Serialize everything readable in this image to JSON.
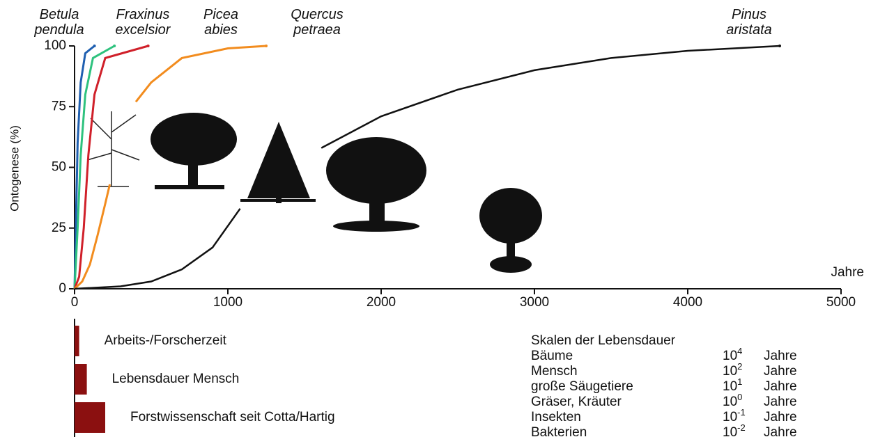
{
  "chart_data": [
    {
      "type": "line",
      "xlabel": "Jahre",
      "ylabel": "Ontogenese (%)",
      "xlim": [
        0,
        5000
      ],
      "xticks": [
        0,
        1000,
        2000,
        3000,
        4000,
        5000
      ],
      "ylim": [
        0,
        100
      ],
      "yticks": [
        0,
        25,
        50,
        75,
        100
      ],
      "series": [
        {
          "name": "Betula pendula",
          "color": "#1f5fb0",
          "x": [
            0,
            10,
            20,
            40,
            70,
            130
          ],
          "values": [
            0,
            30,
            60,
            85,
            97,
            100
          ]
        },
        {
          "name": "Fraxinus excelsior",
          "color": "#2ec27e",
          "x": [
            0,
            20,
            40,
            70,
            120,
            260
          ],
          "values": [
            0,
            25,
            55,
            80,
            95,
            100
          ]
        },
        {
          "name": "Picea abies",
          "color": "#d0202a",
          "x": [
            0,
            30,
            60,
            90,
            130,
            200,
            480
          ],
          "values": [
            0,
            5,
            25,
            55,
            80,
            95,
            100
          ]
        },
        {
          "name": "Quercus petraea",
          "color": "#f28c1e",
          "x": [
            0,
            50,
            100,
            150,
            200,
            230,
            300,
            400,
            500,
            700,
            1000,
            1250
          ],
          "values": [
            0,
            3,
            10,
            22,
            35,
            43,
            null,
            77,
            85,
            95,
            99,
            100
          ]
        },
        {
          "name": "Pinus aristata",
          "color": "#111111",
          "x": [
            0,
            300,
            500,
            700,
            900,
            1080,
            1300,
            1610,
            2000,
            2500,
            3000,
            3500,
            4000,
            4600
          ],
          "values": [
            0,
            1,
            3,
            8,
            17,
            33,
            null,
            58,
            71,
            82,
            90,
            95,
            98,
            100
          ]
        }
      ]
    },
    {
      "type": "bar",
      "orientation": "horizontal",
      "color": "#8b1010",
      "categories": [
        "Arbeits-/Forscherzeit",
        "Lebensdauer Mensch",
        "Forstwissenschaft seit Cotta/Hartig"
      ],
      "values": [
        30,
        80,
        200
      ]
    }
  ],
  "table": {
    "title": "Skalen der Lebensdauer",
    "rows": [
      {
        "name": "Bäume",
        "base": "10",
        "exp": "4",
        "unit": "Jahre"
      },
      {
        "name": "Mensch",
        "base": "10",
        "exp": "2",
        "unit": "Jahre"
      },
      {
        "name": "große Säugetiere",
        "base": "10",
        "exp": "1",
        "unit": "Jahre"
      },
      {
        "name": "Gräser, Kräuter",
        "base": "10",
        "exp": "0",
        "unit": "Jahre"
      },
      {
        "name": "Insekten",
        "base": "10",
        "exp": "-1",
        "unit": "Jahre"
      },
      {
        "name": "Bakterien",
        "base": "10",
        "exp": "-2",
        "unit": "Jahre"
      }
    ]
  }
}
